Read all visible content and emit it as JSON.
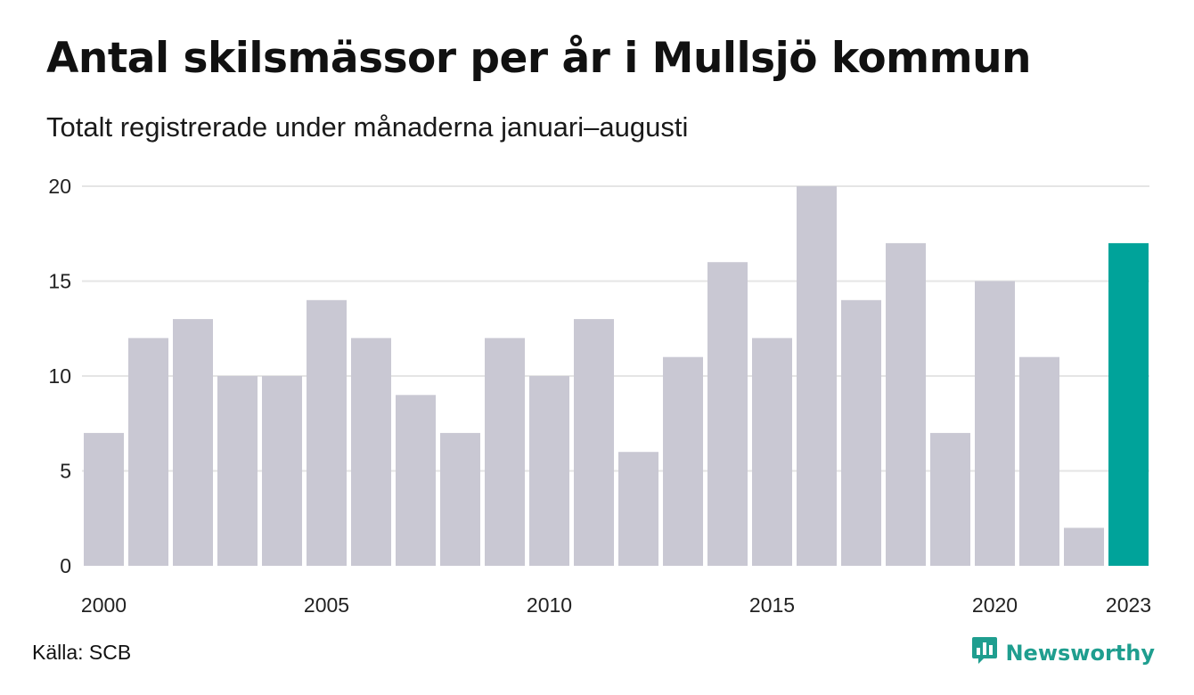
{
  "title": "Antal skilsmässor per år i Mullsjö kommun",
  "subtitle": "Totalt registrerade under månaderna januari–augusti",
  "source": "Källa: SCB",
  "brand": {
    "name": "Newsworthy",
    "icon": "newsworthy-logo-icon",
    "color": "#1f9e8f"
  },
  "colors": {
    "bar": "#c9c8d3",
    "highlight": "#00a39a",
    "grid": "#e5e5e5"
  },
  "chart_data": {
    "type": "bar",
    "x": [
      2000,
      2001,
      2002,
      2003,
      2004,
      2005,
      2006,
      2007,
      2008,
      2009,
      2010,
      2011,
      2012,
      2013,
      2014,
      2015,
      2016,
      2017,
      2018,
      2019,
      2020,
      2021,
      2022,
      2023
    ],
    "values": [
      7,
      12,
      13,
      10,
      10,
      14,
      12,
      9,
      7,
      12,
      10,
      13,
      6,
      11,
      16,
      12,
      20,
      14,
      17,
      7,
      15,
      11,
      2,
      17
    ],
    "highlight": [
      2023
    ],
    "x_tick_labels": [
      "2000",
      "2005",
      "2010",
      "2015",
      "2020",
      "2023"
    ],
    "y_ticks": [
      0,
      5,
      10,
      15,
      20
    ],
    "ylim": [
      0,
      20
    ],
    "grid": "horizontal",
    "legend": "none",
    "xlabel": "",
    "ylabel": ""
  }
}
